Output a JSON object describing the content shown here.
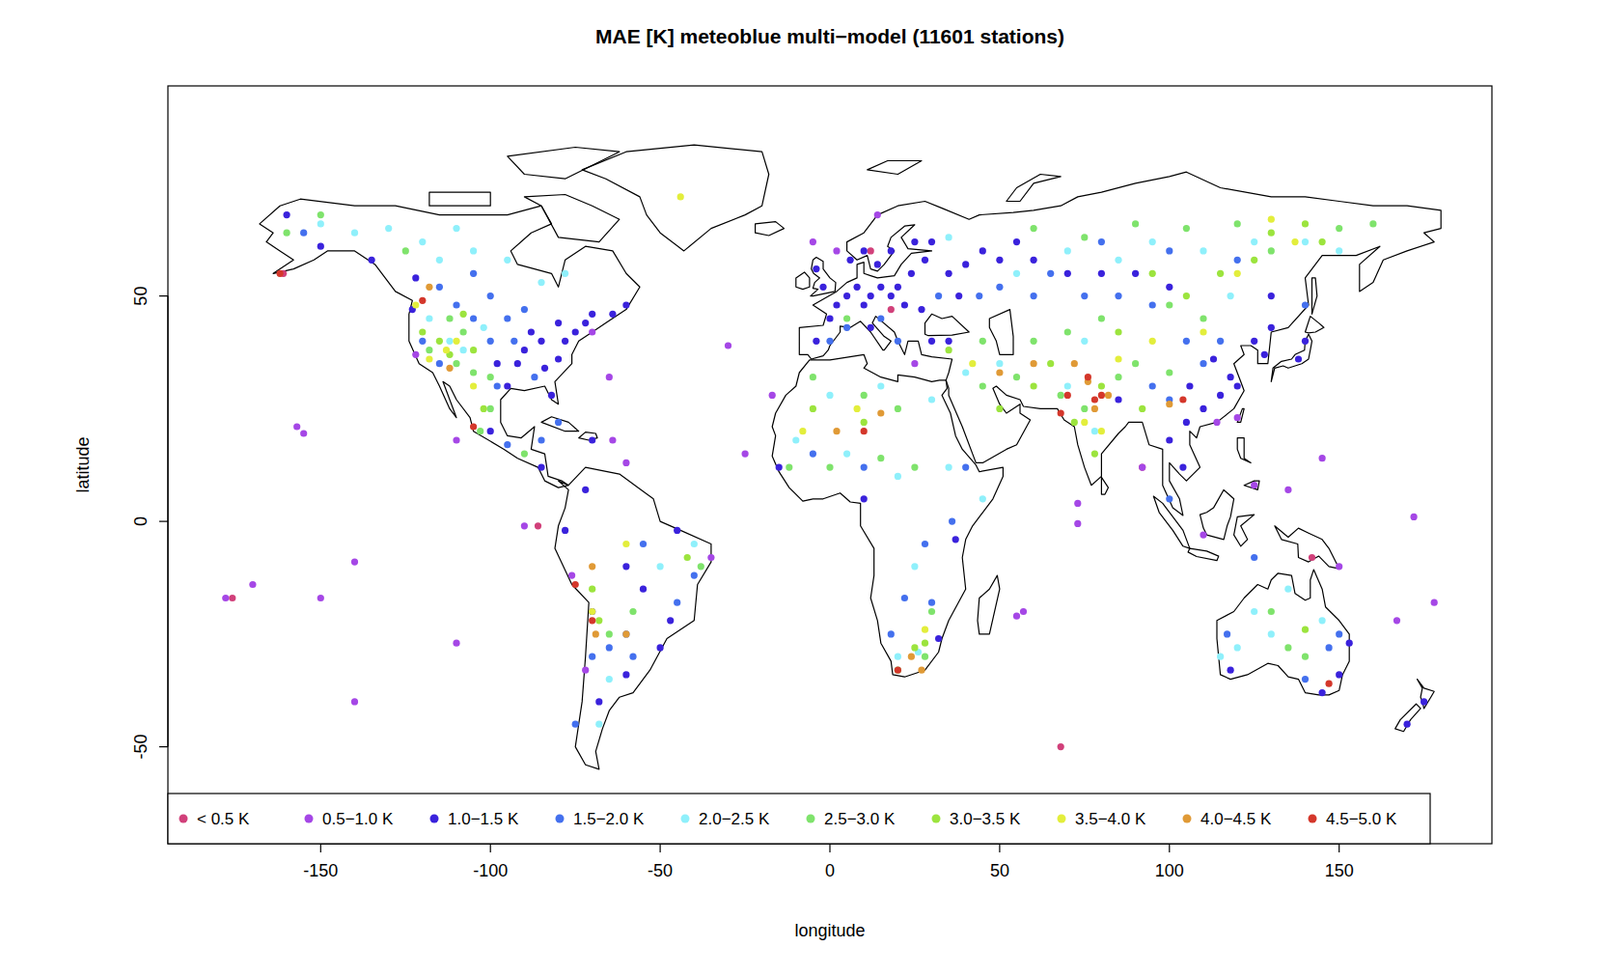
{
  "chart_data": {
    "type": "scatter",
    "title": "MAE [K] meteoblue multi−model (11601 stations)",
    "x_label": "longitude",
    "y_label": "latitude",
    "xlim": [
      -195,
      195
    ],
    "ylim": [
      -71.5,
      96.6
    ],
    "xticks": [
      -150,
      -100,
      -50,
      0,
      50,
      100,
      150
    ],
    "yticks": [
      -50,
      0,
      50
    ],
    "legend": "bottomleft",
    "marker": "circle",
    "series": [
      {
        "name": "< 0.5 K",
        "color": "#d1407a",
        "x": [
          -161,
          -176,
          -86,
          12,
          18,
          92,
          142,
          68
        ],
        "values": [
          55,
          -17,
          -1,
          60,
          47,
          12,
          -8,
          -50
        ]
      },
      {
        "name": "0.5−1.0 K",
        "color": "#a547e6",
        "x": [
          -157,
          -155,
          -178,
          -170,
          -150,
          -140,
          -110,
          -90,
          -65,
          -60,
          -64,
          -30,
          -17,
          -25,
          -5,
          2,
          14,
          25,
          55,
          57,
          73,
          73,
          92,
          110,
          125,
          135,
          145,
          167,
          172,
          178,
          -140,
          -110,
          -76,
          -35,
          -72,
          120,
          114,
          -122,
          -70,
          150
        ],
        "values": [
          21,
          19.5,
          -17,
          -14,
          -17,
          -9,
          18,
          -1,
          32,
          13,
          18,
          39,
          28,
          15,
          62,
          60,
          68,
          35,
          -21,
          -20,
          4,
          -0.5,
          12,
          -3,
          8,
          7,
          14,
          -22,
          1,
          -18,
          -40,
          -27,
          -12,
          -8,
          -33,
          23,
          22,
          37,
          42,
          -10
        ]
      },
      {
        "name": "1.0−1.5 K",
        "color": "#3a22dc",
        "x": [
          2,
          5,
          8,
          10,
          12,
          15,
          18,
          20,
          24,
          28,
          30,
          25,
          18,
          14,
          10,
          6,
          -2,
          -4,
          0,
          -4,
          12,
          22,
          27,
          35,
          40,
          45,
          50,
          38,
          55,
          60,
          -85,
          -80,
          -78,
          -75,
          -90,
          -88,
          -84,
          -95,
          -92,
          -82,
          -72,
          -70,
          -98,
          -80,
          -64,
          -60,
          120,
          115,
          110,
          105,
          100,
          104,
          118,
          113,
          125,
          130,
          138,
          140,
          128,
          106,
          85,
          80,
          90,
          100,
          130,
          70,
          -47,
          -55,
          -60,
          -50,
          -68,
          -70,
          -78,
          -72,
          -45,
          -60,
          118,
          145,
          150,
          153,
          175,
          170,
          32,
          37,
          10,
          -15,
          -123,
          -122,
          -135,
          -150,
          -160,
          -70,
          -85,
          -100,
          35,
          30
        ],
        "values": [
          48,
          50,
          52,
          48,
          50,
          52,
          50,
          52,
          55,
          58,
          62,
          62,
          60,
          57,
          60,
          58,
          52,
          56,
          45,
          40,
          43,
          48,
          47,
          55,
          57,
          60,
          58,
          50,
          62,
          58,
          40,
          36,
          40,
          42,
          38,
          42,
          34,
          30,
          35,
          28,
          44,
          46,
          35,
          44,
          46,
          48,
          30,
          28,
          25,
          22,
          18,
          12,
          32,
          36,
          40,
          43,
          36,
          40,
          37,
          30,
          27,
          55,
          55,
          52,
          50,
          55,
          -22,
          -15,
          -10,
          -28,
          -40,
          -20,
          -2,
          7,
          -2,
          -34,
          -33,
          -38,
          -34,
          -27,
          -40,
          -45,
          -26,
          -4,
          5,
          12,
          47,
          54,
          58,
          61,
          68,
          18,
          12,
          20,
          40,
          40
        ]
      },
      {
        "name": "1.5−2.0 K",
        "color": "#4470ee",
        "x": [
          -100,
          -105,
          -95,
          -90,
          -110,
          -115,
          -98,
          -120,
          -87,
          -93,
          -105,
          -115,
          -100,
          0,
          5,
          15,
          20,
          32,
          44,
          50,
          60,
          65,
          75,
          85,
          95,
          105,
          110,
          115,
          95,
          100,
          80,
          100,
          120,
          140,
          -60,
          -65,
          -55,
          -40,
          -58,
          -70,
          -75,
          -45,
          147,
          140,
          117,
          150,
          18,
          22,
          28,
          30,
          -5,
          10,
          -85,
          -95,
          36,
          40,
          125,
          100,
          -80,
          -155
        ],
        "values": [
          40,
          45,
          45,
          47,
          48,
          35,
          30,
          40,
          32,
          40,
          55,
          52,
          50,
          40,
          43,
          45,
          40,
          50,
          50,
          52,
          50,
          55,
          50,
          50,
          48,
          40,
          35,
          40,
          30,
          27,
          62,
          60,
          58,
          48,
          -25,
          -28,
          -5,
          -12,
          -30,
          -30,
          -45,
          -18,
          -28,
          -35,
          -25,
          -25,
          -25,
          -17,
          -5,
          -18,
          15,
          12,
          18,
          17,
          0,
          12,
          -8,
          5,
          22,
          64
        ]
      },
      {
        "name": "2.0−2.5 K",
        "color": "#8ff0fb",
        "x": [
          -115,
          -105,
          -95,
          -120,
          -130,
          -140,
          -150,
          -110,
          -85,
          -78,
          -108,
          -112,
          -102,
          -118,
          35,
          55,
          70,
          85,
          95,
          110,
          125,
          140,
          150,
          118,
          75,
          50,
          40,
          30,
          15,
          0,
          -10,
          5,
          20,
          35,
          45,
          25,
          20,
          26,
          -65,
          -68,
          -50,
          -40,
          130,
          125,
          135,
          145,
          115,
          120,
          78,
          70
        ],
        "values": [
          58,
          60,
          58,
          62,
          65,
          64,
          66,
          65,
          53,
          55,
          38,
          40,
          43,
          45,
          63,
          55,
          60,
          58,
          62,
          60,
          62,
          62,
          60,
          50,
          40,
          35,
          33,
          27,
          30,
          28,
          18,
          15,
          10,
          12,
          5,
          -10,
          -30,
          -29,
          -35,
          -45,
          -10,
          -5,
          -25,
          -20,
          -15,
          -22,
          -30,
          -28,
          20,
          30
        ]
      },
      {
        "name": "2.5−3.0 K",
        "color": "#7fe36c",
        "x": [
          -160,
          -150,
          -125,
          -118,
          -110,
          -105,
          -100,
          -103,
          -90,
          -108,
          60,
          75,
          90,
          105,
          120,
          130,
          150,
          160,
          100,
          110,
          80,
          70,
          60,
          55,
          45,
          68,
          75,
          85,
          90,
          100,
          -5,
          10,
          20,
          -12,
          0,
          15,
          25,
          30,
          28,
          20,
          -65,
          -58,
          135,
          140,
          130,
          -38,
          -100,
          -112,
          45,
          5
        ],
        "values": [
          64,
          68,
          60,
          38,
          35,
          33,
          25,
          20,
          15,
          42,
          65,
          63,
          66,
          65,
          66,
          60,
          65,
          66,
          48,
          45,
          45,
          42,
          40,
          32,
          30,
          28,
          25,
          32,
          35,
          33,
          32,
          28,
          25,
          12,
          12,
          14,
          12,
          -20,
          -30,
          -33,
          -25,
          -20,
          -28,
          -30,
          -20,
          -10,
          32,
          45,
          40,
          45
        ]
      },
      {
        "name": "3.0−3.5 K",
        "color": "#9ce43e",
        "x": [
          -115,
          -112,
          -105,
          -120,
          -108,
          130,
          140,
          125,
          115,
          145,
          95,
          105,
          85,
          65,
          60,
          50,
          72,
          78,
          80,
          92,
          -5,
          10,
          -70,
          -68,
          25,
          28,
          -42,
          -102,
          35,
          140
        ],
        "values": [
          40,
          37,
          38,
          42,
          46,
          64,
          66,
          58,
          55,
          62,
          55,
          50,
          42,
          35,
          30,
          25,
          22,
          15,
          30,
          25,
          25,
          22,
          -15,
          -22,
          -28,
          -27,
          -8,
          25,
          38,
          -24
        ]
      },
      {
        "name": "3.5−4.0 K",
        "color": "#e3ee3c",
        "x": [
          -113,
          -110,
          -118,
          -44,
          130,
          137,
          120,
          85,
          95,
          75,
          80,
          8,
          -8,
          -70,
          28,
          -105,
          42,
          110,
          -122,
          -60
        ],
        "values": [
          38,
          40,
          36,
          72,
          67,
          62,
          55,
          36,
          40,
          22,
          20,
          25,
          20,
          -20,
          -24,
          30,
          35,
          42,
          48,
          -5
        ]
      },
      {
        "name": "4.0−4.5 K",
        "color": "#e09a36",
        "x": [
          -118,
          -112,
          -69,
          -70,
          2,
          15,
          27,
          60,
          72,
          76,
          78,
          82,
          100,
          50,
          24,
          -60
        ],
        "values": [
          52,
          34,
          -25,
          -10,
          20,
          24,
          -33,
          35,
          35,
          31,
          25,
          28,
          26,
          33,
          -30,
          -25
        ]
      },
      {
        "name": "4.5−5.0 K",
        "color": "#d4372b",
        "x": [
          -162,
          -120,
          -105,
          -75,
          -70,
          10,
          20,
          70,
          76,
          80,
          78,
          104,
          147,
          68
        ],
        "values": [
          55,
          49,
          21,
          -14,
          -22,
          20,
          -33,
          28,
          32,
          28,
          27,
          27,
          -36,
          24
        ]
      }
    ]
  }
}
